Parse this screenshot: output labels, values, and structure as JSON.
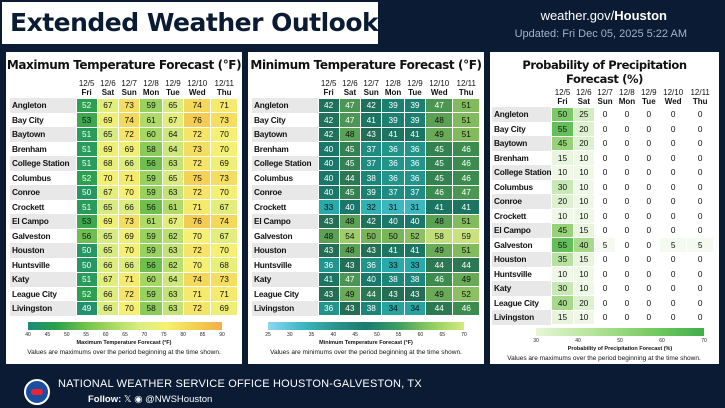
{
  "header": {
    "title": "Extended Weather Outlook",
    "site_prefix": "weather.gov/",
    "site_bold": "Houston",
    "updated": "Updated: Fri Dec 05, 2025 5:22 AM"
  },
  "dates": [
    "12/5",
    "12/6",
    "12/7",
    "12/8",
    "12/9",
    "12/10",
    "12/11"
  ],
  "days": [
    "Fri",
    "Sat",
    "Sun",
    "Mon",
    "Tue",
    "Wed",
    "Thu"
  ],
  "cities": [
    "Angleton",
    "Bay City",
    "Baytown",
    "Brenham",
    "College Station",
    "Columbus",
    "Conroe",
    "Crockett",
    "El Campo",
    "Galveston",
    "Houston",
    "Huntsville",
    "Katy",
    "League City",
    "Livingston"
  ],
  "max_temp": {
    "title": "Maximum Temperature Forecast (°F)",
    "scale_label": "Maximum Temperature Forecast (°F)",
    "note": "Values are maximums over the period beginning at the time shown.",
    "ticks": [
      "40",
      "45",
      "50",
      "55",
      "60",
      "65",
      "70",
      "75",
      "80",
      "85",
      "90"
    ],
    "values": [
      [
        52,
        67,
        73,
        59,
        65,
        74,
        71
      ],
      [
        53,
        69,
        74,
        61,
        67,
        76,
        73
      ],
      [
        51,
        65,
        72,
        60,
        64,
        72,
        70
      ],
      [
        51,
        69,
        69,
        58,
        64,
        73,
        70
      ],
      [
        51,
        68,
        66,
        56,
        63,
        72,
        69
      ],
      [
        52,
        70,
        71,
        59,
        65,
        75,
        73
      ],
      [
        50,
        67,
        70,
        59,
        63,
        72,
        70
      ],
      [
        51,
        65,
        66,
        56,
        61,
        71,
        67
      ],
      [
        53,
        69,
        73,
        61,
        67,
        76,
        74
      ],
      [
        56,
        65,
        69,
        59,
        62,
        70,
        67
      ],
      [
        50,
        65,
        70,
        59,
        63,
        72,
        70
      ],
      [
        50,
        66,
        66,
        56,
        62,
        70,
        68
      ],
      [
        51,
        67,
        71,
        60,
        64,
        74,
        73
      ],
      [
        52,
        66,
        72,
        59,
        63,
        71,
        71
      ],
      [
        49,
        66,
        70,
        58,
        63,
        72,
        69
      ]
    ]
  },
  "min_temp": {
    "title": "Minimum Temperature Forecast (°F)",
    "scale_label": "Minimum Temperature Forecast (°F)",
    "note": "Values are minimums over the period beginning at the time shown.",
    "ticks": [
      "25",
      "30",
      "35",
      "40",
      "45",
      "50",
      "55",
      "60",
      "65",
      "70"
    ],
    "values": [
      [
        42,
        47,
        42,
        39,
        39,
        47,
        51
      ],
      [
        42,
        47,
        41,
        39,
        39,
        48,
        51
      ],
      [
        42,
        48,
        43,
        41,
        41,
        49,
        51
      ],
      [
        40,
        45,
        37,
        36,
        36,
        45,
        46
      ],
      [
        40,
        45,
        37,
        36,
        36,
        45,
        46
      ],
      [
        40,
        44,
        38,
        36,
        36,
        45,
        46
      ],
      [
        40,
        45,
        39,
        37,
        37,
        46,
        47
      ],
      [
        33,
        40,
        32,
        31,
        31,
        41,
        41
      ],
      [
        43,
        48,
        42,
        40,
        40,
        48,
        51
      ],
      [
        48,
        54,
        50,
        50,
        52,
        58,
        59
      ],
      [
        43,
        48,
        43,
        41,
        41,
        49,
        51
      ],
      [
        36,
        43,
        36,
        33,
        33,
        44,
        44
      ],
      [
        41,
        47,
        40,
        38,
        38,
        46,
        49
      ],
      [
        43,
        49,
        44,
        43,
        43,
        49,
        52
      ],
      [
        36,
        43,
        38,
        34,
        34,
        44,
        46
      ]
    ]
  },
  "precip": {
    "title": "Probability of Precipitation Forecast (%)",
    "scale_label": "Probability of Precipitation Forecast (%)",
    "note": "Values are maximums over the period beginning at the time shown.",
    "ticks": [
      "30",
      "40",
      "50",
      "60",
      "70"
    ],
    "values": [
      [
        50,
        25,
        0,
        0,
        0,
        0,
        0
      ],
      [
        55,
        20,
        0,
        0,
        0,
        0,
        0
      ],
      [
        45,
        20,
        0,
        0,
        0,
        0,
        0
      ],
      [
        15,
        10,
        0,
        0,
        0,
        0,
        0
      ],
      [
        10,
        10,
        0,
        0,
        0,
        0,
        0
      ],
      [
        30,
        10,
        0,
        0,
        0,
        0,
        0
      ],
      [
        20,
        10,
        0,
        0,
        0,
        0,
        0
      ],
      [
        10,
        10,
        0,
        0,
        0,
        0,
        0
      ],
      [
        45,
        15,
        0,
        0,
        0,
        0,
        0
      ],
      [
        55,
        40,
        5,
        0,
        0,
        5,
        5
      ],
      [
        35,
        15,
        0,
        0,
        0,
        0,
        0
      ],
      [
        10,
        10,
        0,
        0,
        0,
        0,
        0
      ],
      [
        30,
        10,
        0,
        0,
        0,
        0,
        0
      ],
      [
        40,
        20,
        0,
        0,
        0,
        0,
        0
      ],
      [
        15,
        10,
        0,
        0,
        0,
        0,
        0
      ]
    ]
  },
  "footer": {
    "office": "NATIONAL WEATHER SERVICE OFFICE HOUSTON-GALVESTON, TX",
    "follow_label": "Follow:",
    "x_icon": "x-logo-icon",
    "fb_icon": "facebook-icon",
    "handle": "@NWSHouston"
  }
}
